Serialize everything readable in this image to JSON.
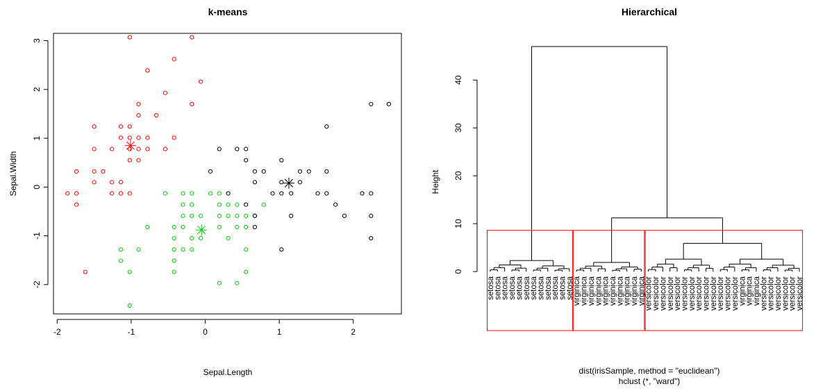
{
  "chart_data": [
    {
      "type": "scatter",
      "title": "k-means",
      "xlabel": "Sepal.Length",
      "ylabel": "Sepal.Width",
      "xlim": [
        -2.05,
        2.65
      ],
      "ylim": [
        -2.6,
        3.15
      ],
      "xticks": [
        "-2",
        "-1",
        "0",
        "1",
        "2"
      ],
      "yticks": [
        "-2",
        "-1",
        "0",
        "1",
        "2",
        "3"
      ],
      "series": [
        {
          "color": "#ff0000",
          "points": [
            [
              -1.02,
              3.07
            ],
            [
              -0.42,
              2.62
            ],
            [
              -0.18,
              3.07
            ],
            [
              -0.06,
              2.16
            ],
            [
              -0.78,
              2.39
            ],
            [
              -0.54,
              1.93
            ],
            [
              -0.18,
              1.7
            ],
            [
              -0.9,
              1.7
            ],
            [
              -0.66,
              1.47
            ],
            [
              -0.9,
              1.47
            ],
            [
              -1.14,
              1.24
            ],
            [
              -1.02,
              1.24
            ],
            [
              -1.5,
              1.24
            ],
            [
              -1.14,
              1.01
            ],
            [
              -1.02,
              1.01
            ],
            [
              -0.9,
              1.01
            ],
            [
              -0.78,
              1.01
            ],
            [
              -0.42,
              1.01
            ],
            [
              -1.26,
              0.78
            ],
            [
              -1.02,
              0.78
            ],
            [
              -0.9,
              0.78
            ],
            [
              -0.78,
              0.78
            ],
            [
              -0.54,
              0.78
            ],
            [
              -1.5,
              0.78
            ],
            [
              -1.02,
              0.55
            ],
            [
              -0.9,
              0.55
            ],
            [
              -1.74,
              0.32
            ],
            [
              -1.5,
              0.32
            ],
            [
              -1.38,
              0.32
            ],
            [
              -1.5,
              0.1
            ],
            [
              -1.26,
              0.1
            ],
            [
              -1.14,
              0.1
            ],
            [
              -1.86,
              -0.13
            ],
            [
              -1.74,
              -0.13
            ],
            [
              -1.26,
              -0.13
            ],
            [
              -1.14,
              -0.13
            ],
            [
              -1.02,
              -0.13
            ],
            [
              -1.74,
              -0.36
            ],
            [
              -1.62,
              -1.74
            ]
          ]
        },
        {
          "color": "#00cc00",
          "points": [
            [
              -0.54,
              -0.13
            ],
            [
              -0.3,
              -0.13
            ],
            [
              -0.18,
              -0.13
            ],
            [
              0.07,
              -0.13
            ],
            [
              0.19,
              -0.13
            ],
            [
              -0.3,
              -0.36
            ],
            [
              -0.18,
              -0.36
            ],
            [
              0.31,
              -0.36
            ],
            [
              0.43,
              -0.36
            ],
            [
              0.19,
              -0.36
            ],
            [
              0.79,
              -0.36
            ],
            [
              -0.3,
              -0.59
            ],
            [
              -0.18,
              -0.59
            ],
            [
              -0.06,
              -0.59
            ],
            [
              0.19,
              -0.59
            ],
            [
              0.31,
              -0.59
            ],
            [
              0.43,
              -0.59
            ],
            [
              0.55,
              -0.59
            ],
            [
              0.67,
              -0.59
            ],
            [
              -0.42,
              -0.82
            ],
            [
              -0.3,
              -0.82
            ],
            [
              -0.78,
              -0.82
            ],
            [
              0.19,
              -0.82
            ],
            [
              0.43,
              -0.82
            ],
            [
              0.55,
              -0.82
            ],
            [
              -0.42,
              -1.05
            ],
            [
              -0.18,
              -1.05
            ],
            [
              -0.06,
              -1.05
            ],
            [
              0.31,
              -1.05
            ],
            [
              -1.14,
              -1.28
            ],
            [
              -0.9,
              -1.28
            ],
            [
              -0.42,
              -1.28
            ],
            [
              -0.3,
              -1.28
            ],
            [
              -0.18,
              -1.28
            ],
            [
              0.55,
              -1.28
            ],
            [
              -1.14,
              -1.51
            ],
            [
              -0.42,
              -1.51
            ],
            [
              -1.02,
              -1.74
            ],
            [
              -0.42,
              -1.74
            ],
            [
              0.55,
              -1.74
            ],
            [
              0.19,
              -1.97
            ],
            [
              0.43,
              -1.97
            ],
            [
              -1.02,
              -2.43
            ]
          ]
        },
        {
          "color": "#000000",
          "points": [
            [
              2.24,
              1.7
            ],
            [
              2.48,
              1.7
            ],
            [
              1.64,
              1.24
            ],
            [
              0.19,
              0.78
            ],
            [
              0.43,
              0.78
            ],
            [
              0.55,
              0.78
            ],
            [
              1.03,
              0.55
            ],
            [
              0.55,
              0.55
            ],
            [
              0.07,
              0.32
            ],
            [
              0.67,
              0.32
            ],
            [
              0.79,
              0.32
            ],
            [
              1.28,
              0.32
            ],
            [
              1.4,
              0.32
            ],
            [
              1.64,
              0.32
            ],
            [
              0.67,
              0.1
            ],
            [
              1.03,
              0.1
            ],
            [
              1.28,
              0.1
            ],
            [
              0.31,
              -0.13
            ],
            [
              0.91,
              -0.13
            ],
            [
              1.03,
              -0.13
            ],
            [
              1.16,
              -0.13
            ],
            [
              1.52,
              -0.13
            ],
            [
              1.64,
              -0.13
            ],
            [
              2.12,
              -0.13
            ],
            [
              2.24,
              -0.13
            ],
            [
              1.76,
              -0.36
            ],
            [
              0.55,
              -0.36
            ],
            [
              0.67,
              -0.59
            ],
            [
              1.16,
              -0.59
            ],
            [
              1.88,
              -0.59
            ],
            [
              2.24,
              -0.59
            ],
            [
              0.67,
              -0.82
            ],
            [
              2.24,
              -1.05
            ],
            [
              1.03,
              -1.28
            ]
          ]
        }
      ],
      "centers": [
        {
          "x": -1.01,
          "y": 0.85,
          "color": "#ff0000"
        },
        {
          "x": -0.05,
          "y": -0.88,
          "color": "#00cc00"
        },
        {
          "x": 1.13,
          "y": 0.08,
          "color": "#000000"
        }
      ]
    },
    {
      "type": "dendrogram",
      "title": "Hierarchical",
      "ylabel": "Height",
      "xlabel": "dist(irisSample, method = \"euclidean\")",
      "sub": "hclust (*, \"ward\")",
      "ylim": [
        0,
        47
      ],
      "yticks": [
        "0",
        "10",
        "20",
        "30",
        "40"
      ],
      "leaves": [
        "setosa",
        "setosa",
        "setosa",
        "setosa",
        "setosa",
        "setosa",
        "setosa",
        "setosa",
        "setosa",
        "setosa",
        "setosa",
        "setosa",
        "virginica",
        "virginica",
        "virginica",
        "virginica",
        "virginica",
        "virginica",
        "virginica",
        "virginica",
        "virginica",
        "virginica",
        "versicolor",
        "versicolor",
        "versicolor",
        "versicolor",
        "versicolor",
        "versicolor",
        "versicolor",
        "versicolor",
        "versicolor",
        "versicolor",
        "versicolor",
        "versicolor",
        "versicolor",
        "virginica",
        "virginica",
        "virginica",
        "versicolor",
        "versicolor",
        "versicolor",
        "versicolor",
        "versicolor",
        "versicolor"
      ],
      "cut_height": 8.6,
      "cut_color": "#ff0000",
      "merges": [
        [
          0,
          11,
          2.3
        ],
        [
          12,
          21,
          1.9
        ],
        [
          22,
          43,
          5.9
        ],
        [
          12,
          43,
          11.2
        ],
        [
          0,
          43,
          47.0
        ]
      ]
    }
  ]
}
